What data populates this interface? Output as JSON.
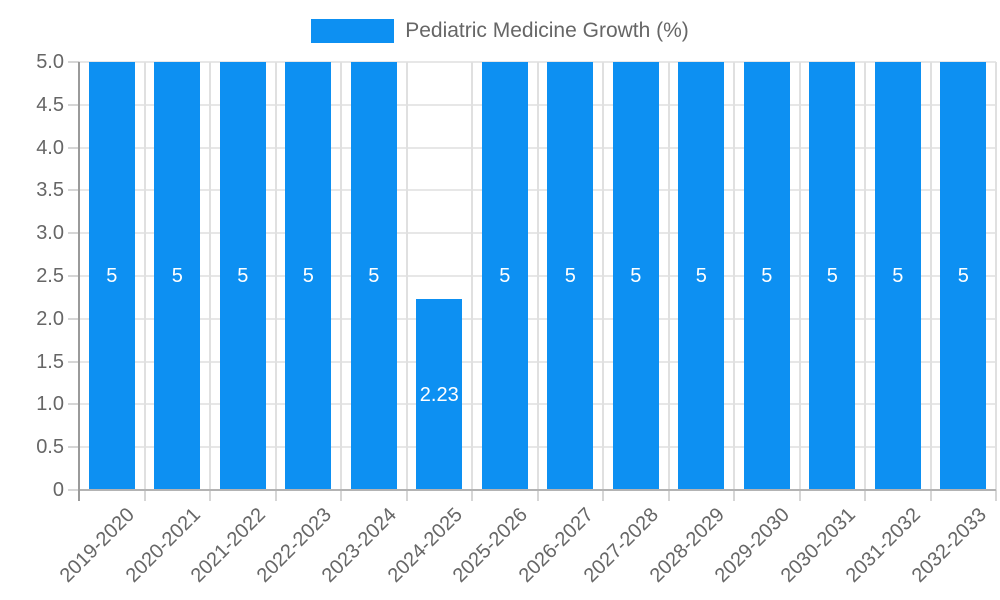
{
  "chart_data": {
    "type": "bar",
    "title": "Pediatric Medicine Growth (%)",
    "categories": [
      "2019-2020",
      "2020-2021",
      "2021-2022",
      "2022-2023",
      "2023-2024",
      "2024-2025",
      "2025-2026",
      "2026-2027",
      "2027-2028",
      "2028-2029",
      "2029-2030",
      "2030-2031",
      "2031-2032",
      "2032-2033"
    ],
    "values": [
      5,
      5,
      5,
      5,
      5,
      2.23,
      5,
      5,
      5,
      5,
      5,
      5,
      5,
      5
    ],
    "bar_labels": [
      "5",
      "5",
      "5",
      "5",
      "5",
      "2.23",
      "5",
      "5",
      "5",
      "5",
      "5",
      "5",
      "5",
      "5"
    ],
    "xlabel": "",
    "ylabel": "",
    "ylim": [
      0,
      5
    ],
    "ytick_step": 0.5,
    "ytick_labels": [
      "0",
      "0.5",
      "1.0",
      "1.5",
      "2.0",
      "2.5",
      "3.0",
      "3.5",
      "4.0",
      "4.5",
      "5.0"
    ],
    "legend_position": "top",
    "grid": "on",
    "colors": {
      "bar": "#0d90f2",
      "bar_value_text": "#ffffff",
      "axis_text": "#666666",
      "h_gridline": "#e7e7e7",
      "v_gridline": "#e0e0e0",
      "y_axis_line": "#9a9a9a",
      "x_axis_line": "#b3b3b3",
      "tick_mark": "#d6d6d6"
    }
  }
}
